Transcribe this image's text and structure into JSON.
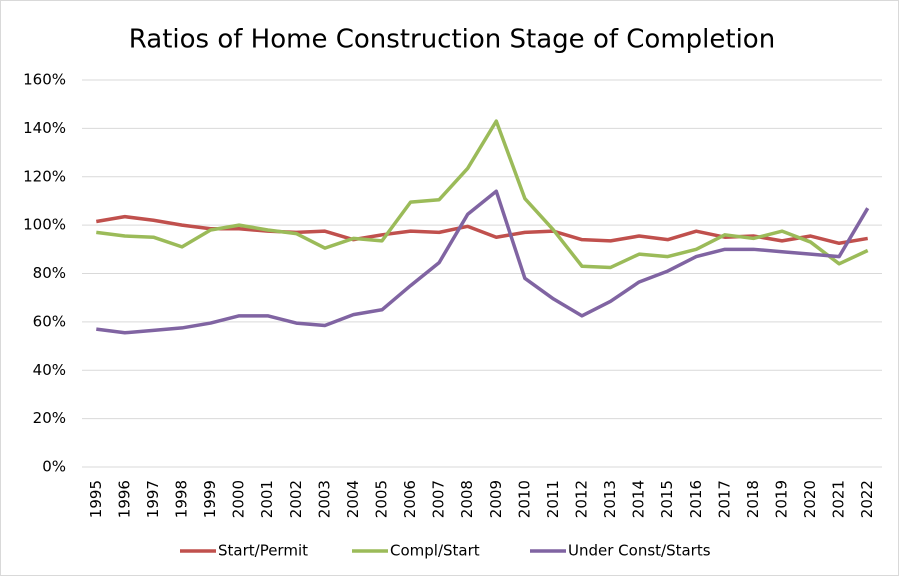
{
  "chart_data": {
    "type": "line",
    "title": "Ratios of Home Construction Stage of Completion",
    "categories": [
      "1995",
      "1996",
      "1997",
      "1998",
      "1999",
      "2000",
      "2001",
      "2002",
      "2003",
      "2004",
      "2005",
      "2006",
      "2007",
      "2008",
      "2009",
      "2010",
      "2011",
      "2012",
      "2013",
      "2014",
      "2015",
      "2016",
      "2017",
      "2018",
      "2019",
      "2020",
      "2021",
      "2022"
    ],
    "series": [
      {
        "name": "Start/Permit",
        "color": "#c0504d",
        "values": [
          101.5,
          103.5,
          102,
          100,
          98.5,
          98.5,
          97.5,
          97,
          97.5,
          94,
          96,
          97.5,
          97,
          99.5,
          95,
          97,
          97.5,
          94,
          93.5,
          95.5,
          94,
          97.5,
          95,
          95.5,
          93.5,
          95.5,
          92.5,
          94.5
        ]
      },
      {
        "name": "Compl/Start",
        "color": "#9bbb59",
        "values": [
          97,
          95.5,
          95,
          91,
          98,
          100,
          98,
          96.5,
          90.5,
          94.5,
          93.5,
          109.5,
          110.5,
          123.5,
          143,
          111,
          98,
          83,
          82.5,
          88,
          87,
          90,
          96,
          94.5,
          97.5,
          93,
          84,
          89.5
        ]
      },
      {
        "name": "Under Const/Starts",
        "color": "#8064a2",
        "values": [
          57,
          55.5,
          56.5,
          57.5,
          59.5,
          62.5,
          62.5,
          59.5,
          58.5,
          63,
          65,
          75,
          84.5,
          104.5,
          114,
          78,
          69.5,
          62.5,
          68.5,
          76.5,
          81,
          87,
          90,
          90,
          89,
          88,
          87,
          107
        ]
      }
    ],
    "ylim": [
      0,
      160
    ],
    "yticks": [
      {
        "value": 0,
        "label": "0%"
      },
      {
        "value": 20,
        "label": "20%"
      },
      {
        "value": 40,
        "label": "40%"
      },
      {
        "value": 60,
        "label": "60%"
      },
      {
        "value": 80,
        "label": "80%"
      },
      {
        "value": 100,
        "label": "100%"
      },
      {
        "value": 120,
        "label": "120%"
      },
      {
        "value": 140,
        "label": "140%"
      },
      {
        "value": 160,
        "label": "160%"
      }
    ],
    "grid": true,
    "legend": "bottom"
  }
}
